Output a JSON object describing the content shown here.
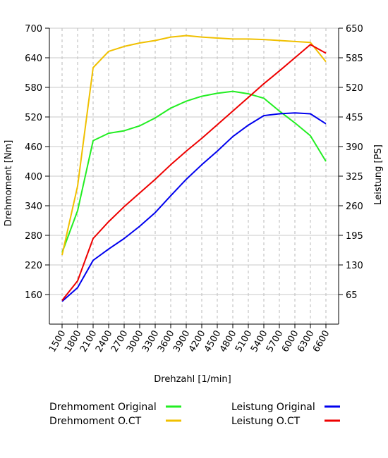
{
  "chart_data": {
    "type": "line",
    "xlabel": "Drehzahl [1/min]",
    "ylabel_left": "Drehmoment [Nm]",
    "ylabel_right": "Leistung [PS]",
    "grid": true,
    "legend_placement": "bottom",
    "x_ticks": [
      1500,
      1800,
      2100,
      2400,
      2700,
      3000,
      3300,
      3600,
      3900,
      4200,
      4500,
      4800,
      5100,
      5400,
      5700,
      6000,
      6300,
      6600
    ],
    "xlim": [
      1500,
      6600
    ],
    "ylim_left": [
      100,
      700
    ],
    "ylim_right": [
      0,
      650
    ],
    "y_left_ticks": [
      160,
      220,
      280,
      340,
      400,
      460,
      520,
      580,
      640,
      700
    ],
    "y_right_ticks": [
      65,
      130,
      195,
      260,
      325,
      390,
      455,
      520,
      585,
      650
    ],
    "series": [
      {
        "name": "Drehmoment Original",
        "axis": "left",
        "color": "#22ee22",
        "x": [
          1500,
          1800,
          2100,
          2400,
          2700,
          3000,
          3300,
          3600,
          3900,
          4200,
          4500,
          4800,
          5100,
          5400,
          5700,
          6000,
          6300,
          6600
        ],
        "values": [
          245,
          330,
          472,
          487,
          492,
          502,
          518,
          538,
          552,
          562,
          568,
          572,
          567,
          558,
          532,
          508,
          482,
          430
        ]
      },
      {
        "name": "Drehmoment O.CT",
        "axis": "left",
        "color": "#f0c000",
        "x": [
          1500,
          1800,
          2100,
          2400,
          2700,
          3000,
          3300,
          3600,
          3900,
          4200,
          4500,
          4800,
          5100,
          5400,
          5700,
          6000,
          6300,
          6600
        ],
        "values": [
          240,
          380,
          620,
          653,
          663,
          670,
          675,
          682,
          685,
          682,
          680,
          678,
          678,
          677,
          675,
          673,
          671,
          632
        ]
      },
      {
        "name": "Leistung Original",
        "axis": "right",
        "color": "#0000ee",
        "x": [
          1500,
          1800,
          2100,
          2400,
          2700,
          3000,
          3300,
          3600,
          3900,
          4200,
          4500,
          4800,
          5100,
          5400,
          5700,
          6000,
          6300,
          6600
        ],
        "values": [
          50,
          80,
          140,
          165,
          188,
          215,
          245,
          282,
          318,
          350,
          380,
          412,
          437,
          458,
          462,
          464,
          462,
          440
        ]
      },
      {
        "name": "Leistung O.CT",
        "axis": "right",
        "color": "#ee0000",
        "x": [
          1500,
          1800,
          2100,
          2400,
          2700,
          3000,
          3300,
          3600,
          3900,
          4200,
          4500,
          4800,
          5100,
          5400,
          5700,
          6000,
          6300,
          6600
        ],
        "values": [
          52,
          95,
          188,
          225,
          258,
          288,
          318,
          350,
          380,
          408,
          438,
          468,
          498,
          528,
          556,
          585,
          614,
          595
        ]
      }
    ]
  }
}
